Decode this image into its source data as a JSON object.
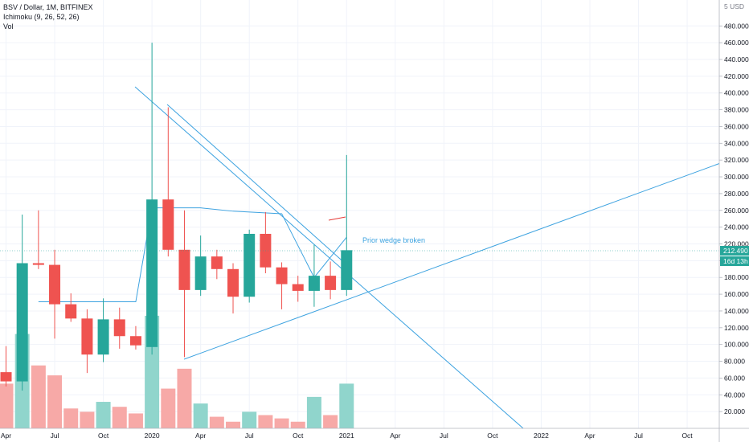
{
  "legend": {
    "symbol_line": "BSV / Dollar, 1M, BITFINEX",
    "indicator": "Ichimoku (9, 26, 52, 26)",
    "volume": "Vol"
  },
  "annotation": "Prior wedge broken",
  "price_badge": {
    "value": "212.490",
    "countdown": "16d 13h"
  },
  "colors": {
    "up": "#26a69a",
    "down": "#ef5350",
    "up_vol": "#90d5cc",
    "down_vol": "#f7a9a7",
    "lines": "#3ea3e0",
    "ichimoku_lag": "#e53935"
  },
  "chart_data": {
    "type": "candlestick",
    "title": "BSV / Dollar, 1M, BITFINEX",
    "y_unit": "USD",
    "ylim": [
      0,
      500
    ],
    "y_ticks": [
      "20.000",
      "40.000",
      "60.000",
      "80.000",
      "100.000",
      "120.000",
      "140.000",
      "160.000",
      "180.000",
      "200.000",
      "220.000",
      "240.000",
      "260.000",
      "280.000",
      "300.000",
      "320.000",
      "340.000",
      "360.000",
      "380.000",
      "400.000",
      "420.000",
      "440.000",
      "460.000",
      "480.000"
    ],
    "y_top_label": "5 USD",
    "x_labels": [
      {
        "label": "Apr",
        "month": "2019-04"
      },
      {
        "label": "Jul",
        "month": "2019-07"
      },
      {
        "label": "Oct",
        "month": "2019-10"
      },
      {
        "label": "2020",
        "month": "2020-01"
      },
      {
        "label": "Apr",
        "month": "2020-04"
      },
      {
        "label": "Jul",
        "month": "2020-07"
      },
      {
        "label": "Oct",
        "month": "2020-10"
      },
      {
        "label": "2021",
        "month": "2021-01"
      },
      {
        "label": "Apr",
        "month": "2021-04"
      },
      {
        "label": "Jul",
        "month": "2021-07"
      },
      {
        "label": "Oct",
        "month": "2021-10"
      },
      {
        "label": "2022",
        "month": "2022-01"
      },
      {
        "label": "Apr",
        "month": "2022-04"
      },
      {
        "label": "Jul",
        "month": "2022-07"
      },
      {
        "label": "Oct",
        "month": "2022-10"
      }
    ],
    "candles": [
      {
        "month": "2019-04",
        "o": 67,
        "h": 98,
        "l": 50,
        "c": 56,
        "vol": "down"
      },
      {
        "month": "2019-05",
        "o": 56,
        "h": 255,
        "l": 45,
        "c": 197,
        "vol": "up"
      },
      {
        "month": "2019-06",
        "o": 197,
        "h": 260,
        "l": 190,
        "c": 195,
        "vol": "down"
      },
      {
        "month": "2019-07",
        "o": 195,
        "h": 213,
        "l": 107,
        "c": 148,
        "vol": "down"
      },
      {
        "month": "2019-08",
        "o": 148,
        "h": 161,
        "l": 127,
        "c": 131,
        "vol": "down"
      },
      {
        "month": "2019-09",
        "o": 131,
        "h": 142,
        "l": 66,
        "c": 88,
        "vol": "down"
      },
      {
        "month": "2019-10",
        "o": 88,
        "h": 155,
        "l": 79,
        "c": 130,
        "vol": "up"
      },
      {
        "month": "2019-11",
        "o": 130,
        "h": 144,
        "l": 95,
        "c": 110,
        "vol": "down"
      },
      {
        "month": "2019-12",
        "o": 110,
        "h": 122,
        "l": 94,
        "c": 99,
        "vol": "down"
      },
      {
        "month": "2020-01",
        "o": 97,
        "h": 460,
        "l": 88,
        "c": 273,
        "vol": "up"
      },
      {
        "month": "2020-02",
        "o": 273,
        "h": 383,
        "l": 205,
        "c": 213,
        "vol": "down"
      },
      {
        "month": "2020-03",
        "o": 213,
        "h": 260,
        "l": 85,
        "c": 165,
        "vol": "down"
      },
      {
        "month": "2020-04",
        "o": 165,
        "h": 230,
        "l": 158,
        "c": 205,
        "vol": "up"
      },
      {
        "month": "2020-05",
        "o": 205,
        "h": 213,
        "l": 178,
        "c": 190,
        "vol": "down"
      },
      {
        "month": "2020-06",
        "o": 190,
        "h": 197,
        "l": 137,
        "c": 157,
        "vol": "down"
      },
      {
        "month": "2020-07",
        "o": 157,
        "h": 237,
        "l": 150,
        "c": 232,
        "vol": "up"
      },
      {
        "month": "2020-08",
        "o": 232,
        "h": 258,
        "l": 185,
        "c": 192,
        "vol": "down"
      },
      {
        "month": "2020-09",
        "o": 192,
        "h": 198,
        "l": 142,
        "c": 172,
        "vol": "down"
      },
      {
        "month": "2020-10",
        "o": 172,
        "h": 182,
        "l": 151,
        "c": 164,
        "vol": "down"
      },
      {
        "month": "2020-11",
        "o": 164,
        "h": 219,
        "l": 145,
        "c": 182,
        "vol": "up"
      },
      {
        "month": "2020-12",
        "o": 182,
        "h": 199,
        "l": 154,
        "c": 165,
        "vol": "down"
      },
      {
        "month": "2021-01",
        "o": 165,
        "h": 326,
        "l": 158,
        "c": 212.49,
        "vol": "up"
      }
    ],
    "volumes": [
      27,
      57,
      38,
      32,
      12,
      10,
      16,
      13,
      9,
      68,
      24,
      36,
      15,
      7,
      4,
      10,
      8,
      6,
      4,
      19,
      8,
      27
    ]
  }
}
